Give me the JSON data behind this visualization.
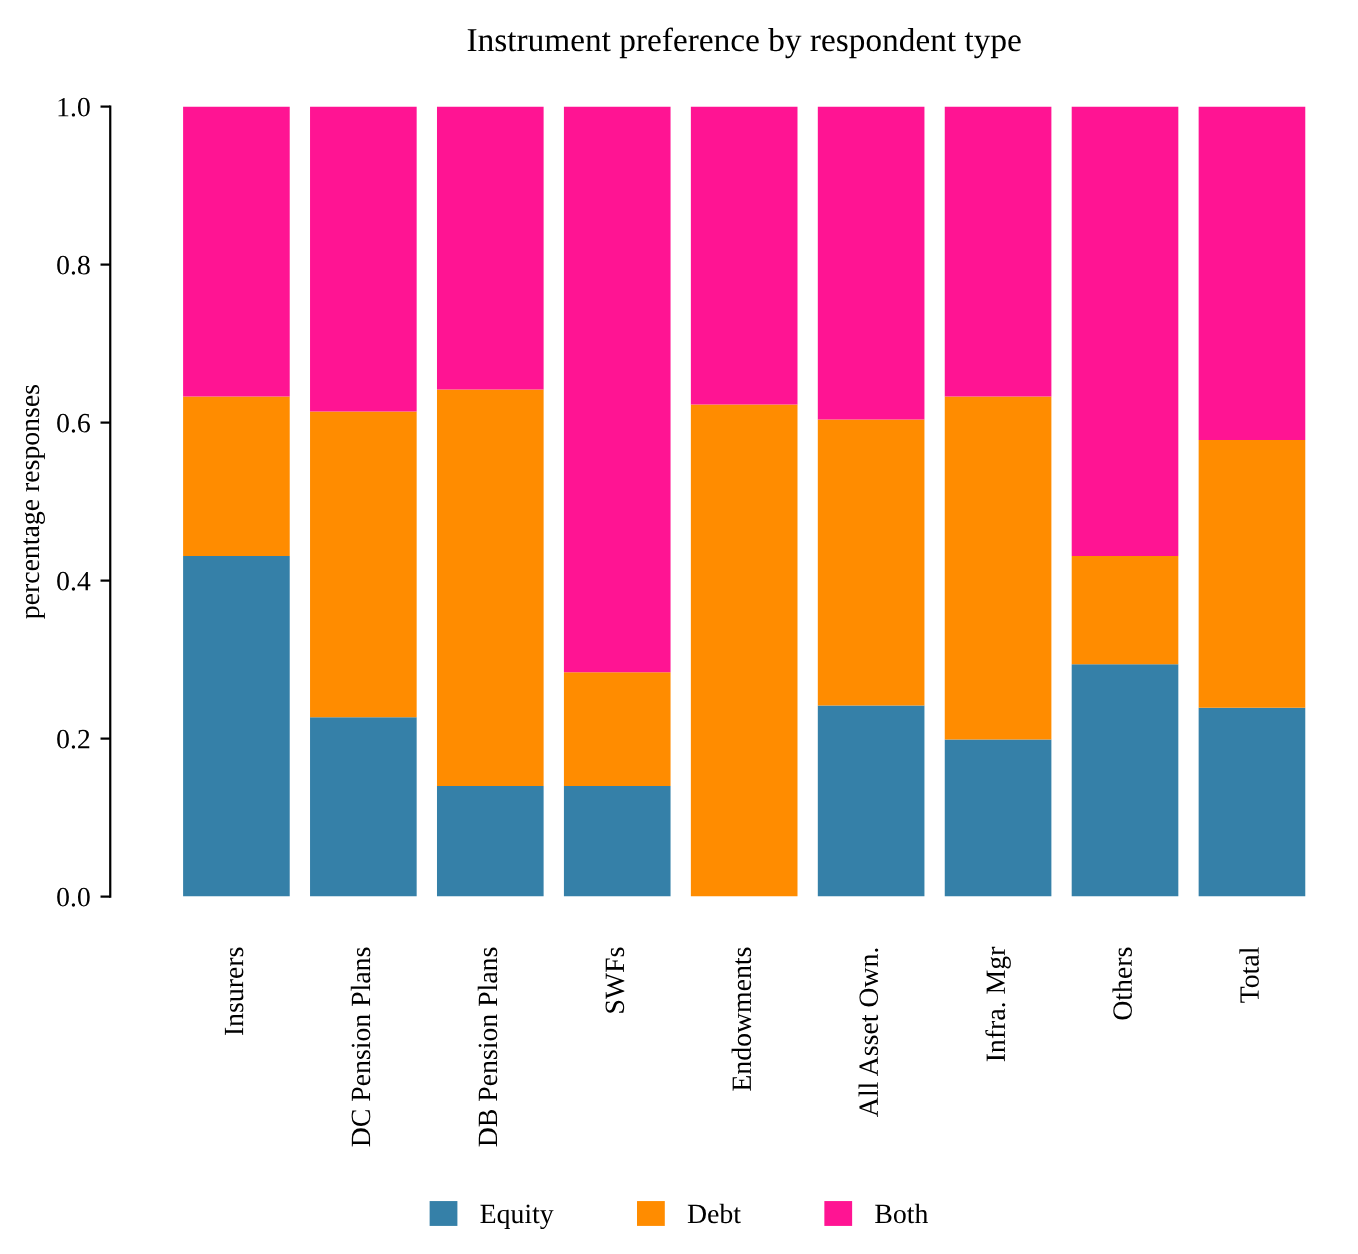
{
  "chart_data": {
    "type": "bar",
    "title": "Instrument preference by respondent type",
    "ylabel": "percentage responses",
    "categories": [
      "Insurers",
      "DC Pension Plans",
      "DB Pension Plans",
      "SWFs",
      "Endowments",
      "All Asset Own.",
      "Infra. Mgr",
      "Others",
      "Total"
    ],
    "stacked": true,
    "ylim": [
      0,
      1
    ],
    "yticks": [
      {
        "value": 0,
        "label": "0.0"
      },
      {
        "value": 0.2,
        "label": "0.2"
      },
      {
        "value": 0.4,
        "label": "0.4"
      },
      {
        "value": 0.6,
        "label": "0.6"
      },
      {
        "value": 0.8,
        "label": "0.8"
      },
      {
        "value": 1,
        "label": "1.0"
      }
    ],
    "grid": false,
    "legend": "bottom",
    "series": [
      {
        "name": "Equity",
        "color": "#3580a8",
        "values": [
          0.431,
          0.227,
          0.14,
          0.14,
          0,
          0.242,
          0.199,
          0.294,
          0.239
        ]
      },
      {
        "name": "Debt",
        "color": "#ff8c00",
        "values": [
          0.202,
          0.387,
          0.502,
          0.144,
          0.623,
          0.362,
          0.434,
          0.137,
          0.339
        ]
      },
      {
        "name": "Both",
        "color": "#ff1493",
        "values": [
          0.367,
          0.386,
          0.358,
          0.716,
          0.377,
          0.396,
          0.367,
          0.569,
          0.422
        ]
      }
    ]
  }
}
